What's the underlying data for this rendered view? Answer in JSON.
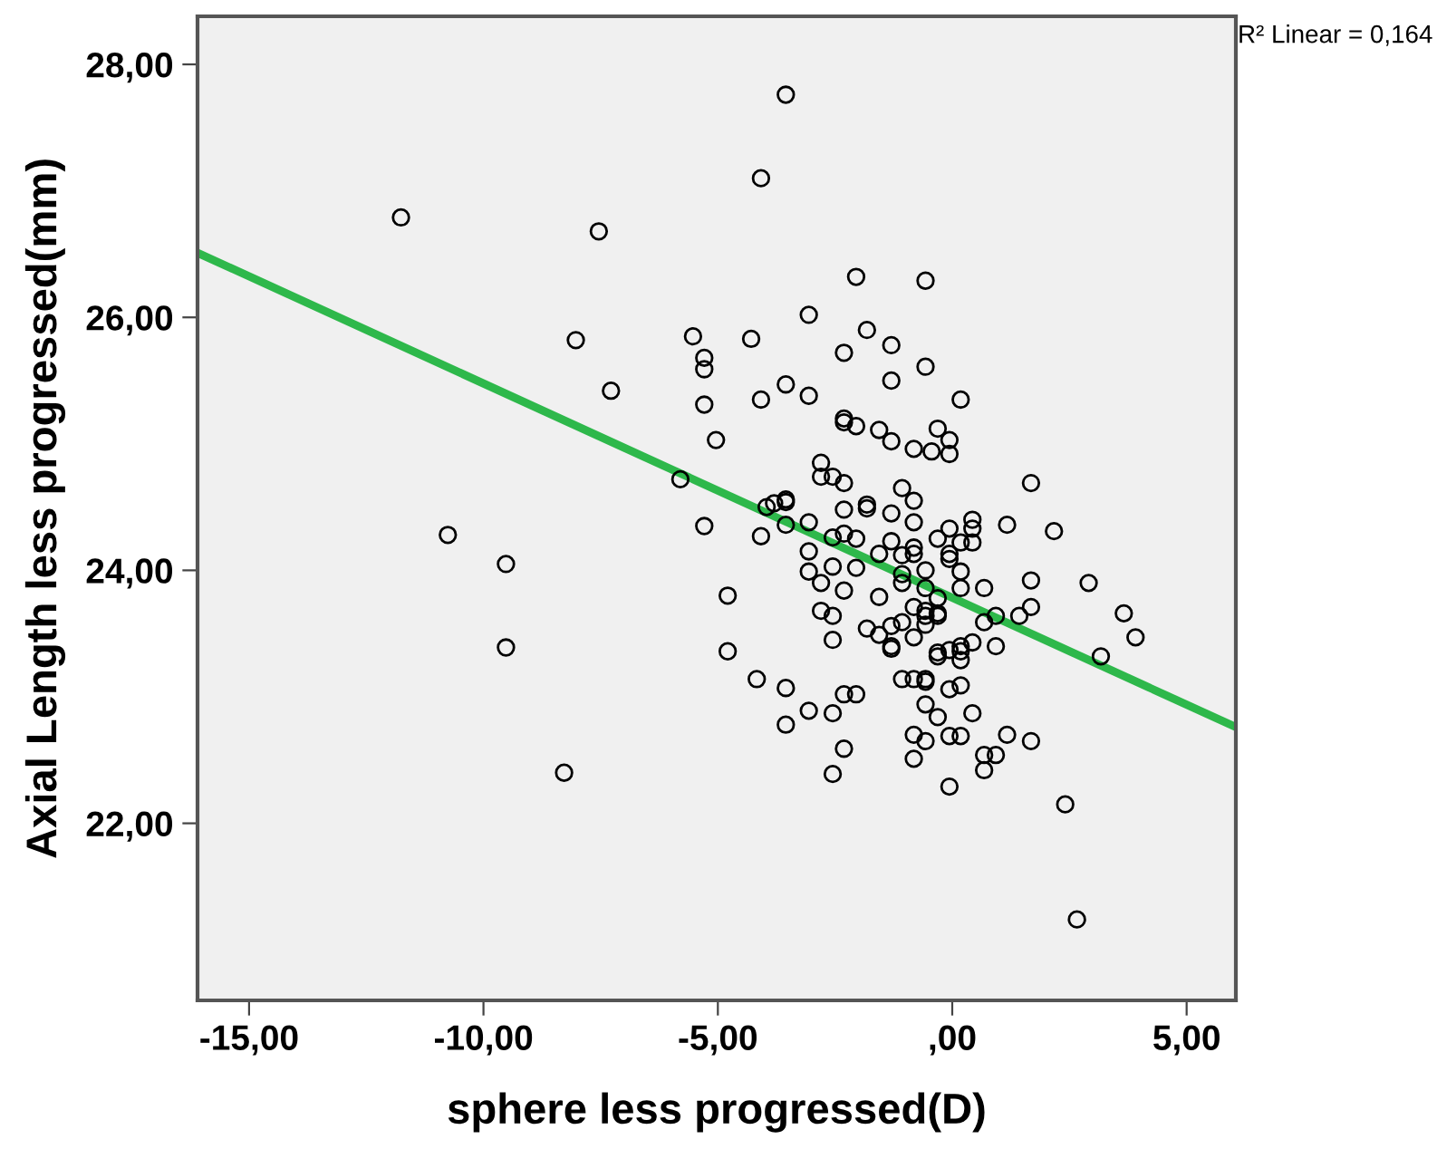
{
  "chart_data": {
    "type": "scatter",
    "xlabel": "sphere less progressed(D)",
    "ylabel": "Axial Length less progressed(mm)",
    "annotations": [
      "R² Linear = 0,164"
    ],
    "xlim": [
      -16.1,
      6.05
    ],
    "ylim": [
      20.6,
      28.38
    ],
    "xticks": [
      {
        "value": -15,
        "label": "-15,00"
      },
      {
        "value": -10,
        "label": "-10,00"
      },
      {
        "value": -5,
        "label": "-5,00"
      },
      {
        "value": 0,
        "label": ",00"
      },
      {
        "value": 5,
        "label": "5,00"
      }
    ],
    "yticks": [
      {
        "value": 22,
        "label": "22,00"
      },
      {
        "value": 24,
        "label": "24,00"
      },
      {
        "value": 26,
        "label": "26,00"
      },
      {
        "value": 28,
        "label": "28,00"
      }
    ],
    "grid": false,
    "legend": false,
    "series": [
      {
        "color": "#000000",
        "marker": "circle",
        "x": [
          -11.76,
          -7.54,
          -4.08,
          -8.03,
          -5.53,
          -4.29,
          -5.29,
          -5.29,
          -7.28,
          -4.08,
          -5.29,
          -5.04,
          -5.8,
          -3.96,
          -5.29,
          -4.08,
          -10.76,
          -9.52,
          -4.79,
          -9.52,
          -4.79,
          -4.17,
          -8.28,
          -3.55,
          -2.05,
          -0.57,
          -3.06,
          -1.82,
          -1.3,
          -2.31,
          -0.57,
          -1.3,
          -3.55,
          -3.06,
          0.18,
          -2.31,
          -2.31,
          -2.05,
          -1.56,
          -1.3,
          -0.31,
          -0.06,
          -0.82,
          -0.44,
          -0.06,
          -2.8,
          -2.8,
          -2.55,
          -2.31,
          1.68,
          -1.07,
          -0.82,
          -3.8,
          -3.55,
          -3.55,
          -1.82,
          -1.82,
          -2.31,
          -1.3,
          -3.55,
          -3.06,
          -0.82,
          0.43,
          0.43,
          -0.06,
          1.17,
          2.17,
          -2.55,
          -2.31,
          -2.05,
          -1.3,
          -0.31,
          0.18,
          0.43,
          -3.06,
          -1.56,
          -1.07,
          -0.82,
          -0.82,
          -0.06,
          -0.06,
          -3.06,
          -2.55,
          -2.05,
          -2.8,
          -2.31,
          -1.07,
          -1.07,
          -0.57,
          0.18,
          0.18,
          0.68,
          1.68,
          2.91,
          -1.56,
          -0.57,
          -0.31,
          -2.8,
          -2.55,
          -0.82,
          -0.57,
          -0.57,
          -0.31,
          -0.31,
          0.93,
          0.68,
          1.43,
          1.68,
          3.66,
          3.91,
          3.17,
          -1.82,
          -1.56,
          -1.3,
          -1.07,
          -0.57,
          -1.3,
          -1.3,
          -0.82,
          -2.55,
          0.43,
          0.93,
          -0.31,
          -0.31,
          -0.06,
          0.18,
          0.18,
          0.18,
          -3.55,
          -3.55,
          -3.06,
          -2.55,
          -2.31,
          -2.05,
          -1.07,
          -0.82,
          -0.57,
          -0.57,
          -0.06,
          0.18,
          -0.57,
          -0.31,
          0.43,
          -2.31,
          -2.55,
          -0.82,
          -0.57,
          -0.82,
          -0.06,
          0.18,
          1.17,
          1.68,
          0.68,
          0.93,
          0.68,
          -0.06,
          2.41,
          2.66
        ],
        "values": [
          26.79,
          26.68,
          27.1,
          25.82,
          25.85,
          25.83,
          25.68,
          25.59,
          25.42,
          25.35,
          25.31,
          25.03,
          24.72,
          24.5,
          24.35,
          24.27,
          24.28,
          24.05,
          23.8,
          23.39,
          23.36,
          23.14,
          22.4,
          27.76,
          26.32,
          26.29,
          26.02,
          25.9,
          25.78,
          25.72,
          25.61,
          25.5,
          25.47,
          25.38,
          25.35,
          25.2,
          25.17,
          25.14,
          25.11,
          25.02,
          25.12,
          25.03,
          24.96,
          24.94,
          24.92,
          24.85,
          24.74,
          24.74,
          24.69,
          24.69,
          24.65,
          24.55,
          24.53,
          24.56,
          24.54,
          24.52,
          24.49,
          24.48,
          24.45,
          24.36,
          24.38,
          24.38,
          24.4,
          24.33,
          24.33,
          24.36,
          24.31,
          24.26,
          24.29,
          24.25,
          24.23,
          24.25,
          24.22,
          24.22,
          24.15,
          24.13,
          24.12,
          24.18,
          24.13,
          24.13,
          24.09,
          23.99,
          24.03,
          24.02,
          23.9,
          23.84,
          23.97,
          23.9,
          24.0,
          23.99,
          23.86,
          23.86,
          23.92,
          23.9,
          23.79,
          23.86,
          23.78,
          23.68,
          23.64,
          23.71,
          23.68,
          23.64,
          23.66,
          23.64,
          23.64,
          23.59,
          23.64,
          23.71,
          23.66,
          23.47,
          23.32,
          23.54,
          23.49,
          23.56,
          23.59,
          23.57,
          23.4,
          23.38,
          23.47,
          23.45,
          23.43,
          23.4,
          23.35,
          23.32,
          23.37,
          23.4,
          23.36,
          23.29,
          23.07,
          22.78,
          22.89,
          22.87,
          23.02,
          23.02,
          23.14,
          23.14,
          23.14,
          23.12,
          23.06,
          23.09,
          22.94,
          22.84,
          22.87,
          22.59,
          22.39,
          22.7,
          22.65,
          22.51,
          22.69,
          22.69,
          22.7,
          22.65,
          22.54,
          22.54,
          22.42,
          22.29,
          22.15,
          21.24
        ]
      },
      {
        "type": "line",
        "color": "#2eb84b",
        "x": [
          -16.1,
          6.05
        ],
        "values": [
          26.51,
          22.76
        ],
        "line_style": "solid",
        "marker": "none"
      }
    ]
  }
}
